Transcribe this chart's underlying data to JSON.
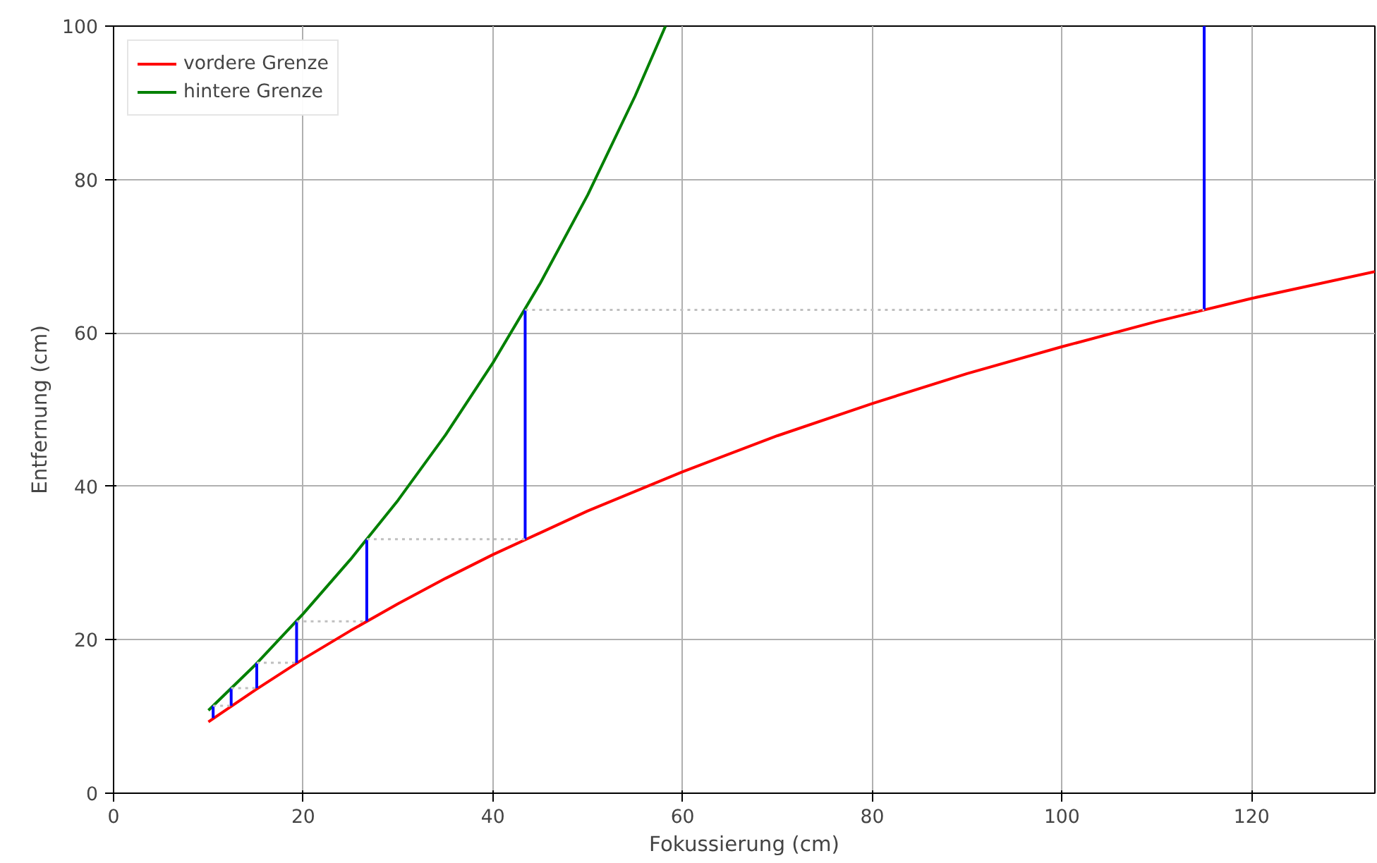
{
  "chart_data": {
    "type": "line",
    "xlabel": "Fokussierung (cm)",
    "ylabel": "Entfernung (cm)",
    "xlim": [
      0,
      133
    ],
    "ylim": [
      0,
      100
    ],
    "xticks": [
      0,
      20,
      40,
      60,
      80,
      100,
      120
    ],
    "yticks": [
      0,
      20,
      40,
      60,
      80,
      100
    ],
    "grid": true,
    "legend": "top left",
    "line_style": "solid",
    "marker": "none",
    "series": [
      {
        "name": "vordere Grenze",
        "color": "#ff0000",
        "x": [
          10,
          15,
          20,
          25,
          30,
          35,
          40,
          50,
          60,
          70,
          80,
          90,
          100,
          110,
          120,
          133
        ],
        "values": [
          9.3,
          13.5,
          17.5,
          21.2,
          24.7,
          28,
          31.1,
          36.8,
          41.9,
          46.6,
          50.8,
          54.7,
          58.2,
          61.5,
          64.5,
          68
        ]
      },
      {
        "name": "hintere Grenze",
        "color": "#008000",
        "x": [
          10,
          15,
          20,
          25,
          30,
          35,
          40,
          45,
          50,
          55,
          58.2
        ],
        "values": [
          10.8,
          16.8,
          23.4,
          30.5,
          38.2,
          46.7,
          56.1,
          66.5,
          78,
          90.9,
          100
        ]
      },
      {
        "color": "#0000ff",
        "x": [
          10.5,
          10.5
        ],
        "values": [
          9.8,
          11.4
        ]
      },
      {
        "color": "#0000ff",
        "x": [
          12.4,
          12.4
        ],
        "values": [
          11.4,
          13.7
        ]
      },
      {
        "color": "#0000ff",
        "x": [
          15.1,
          15.1
        ],
        "values": [
          13.7,
          17
        ]
      },
      {
        "color": "#0000ff",
        "x": [
          19.3,
          19.3
        ],
        "values": [
          17,
          22.4
        ]
      },
      {
        "color": "#0000ff",
        "x": [
          26.7,
          26.7
        ],
        "values": [
          22.4,
          33.1
        ]
      },
      {
        "color": "#0000ff",
        "x": [
          43.4,
          43.4
        ],
        "values": [
          33.1,
          63
        ]
      },
      {
        "color": "#0000ff",
        "x": [
          115,
          115
        ],
        "values": [
          63,
          100
        ]
      },
      {
        "color": "#c0c0c0",
        "line_style": "dotted",
        "x": [
          10.5,
          12.4
        ],
        "values": [
          11.4,
          11.4
        ]
      },
      {
        "color": "#c0c0c0",
        "line_style": "dotted",
        "x": [
          12.4,
          15.1
        ],
        "values": [
          13.7,
          13.7
        ]
      },
      {
        "color": "#c0c0c0",
        "line_style": "dotted",
        "x": [
          15.1,
          19.3
        ],
        "values": [
          17,
          17
        ]
      },
      {
        "color": "#c0c0c0",
        "line_style": "dotted",
        "x": [
          19.3,
          26.7
        ],
        "values": [
          22.4,
          22.4
        ]
      },
      {
        "color": "#c0c0c0",
        "line_style": "dotted",
        "x": [
          26.7,
          43.4
        ],
        "values": [
          33.1,
          33.1
        ]
      },
      {
        "color": "#c0c0c0",
        "line_style": "dotted",
        "x": [
          43.4,
          115
        ],
        "values": [
          63,
          63
        ]
      }
    ]
  }
}
